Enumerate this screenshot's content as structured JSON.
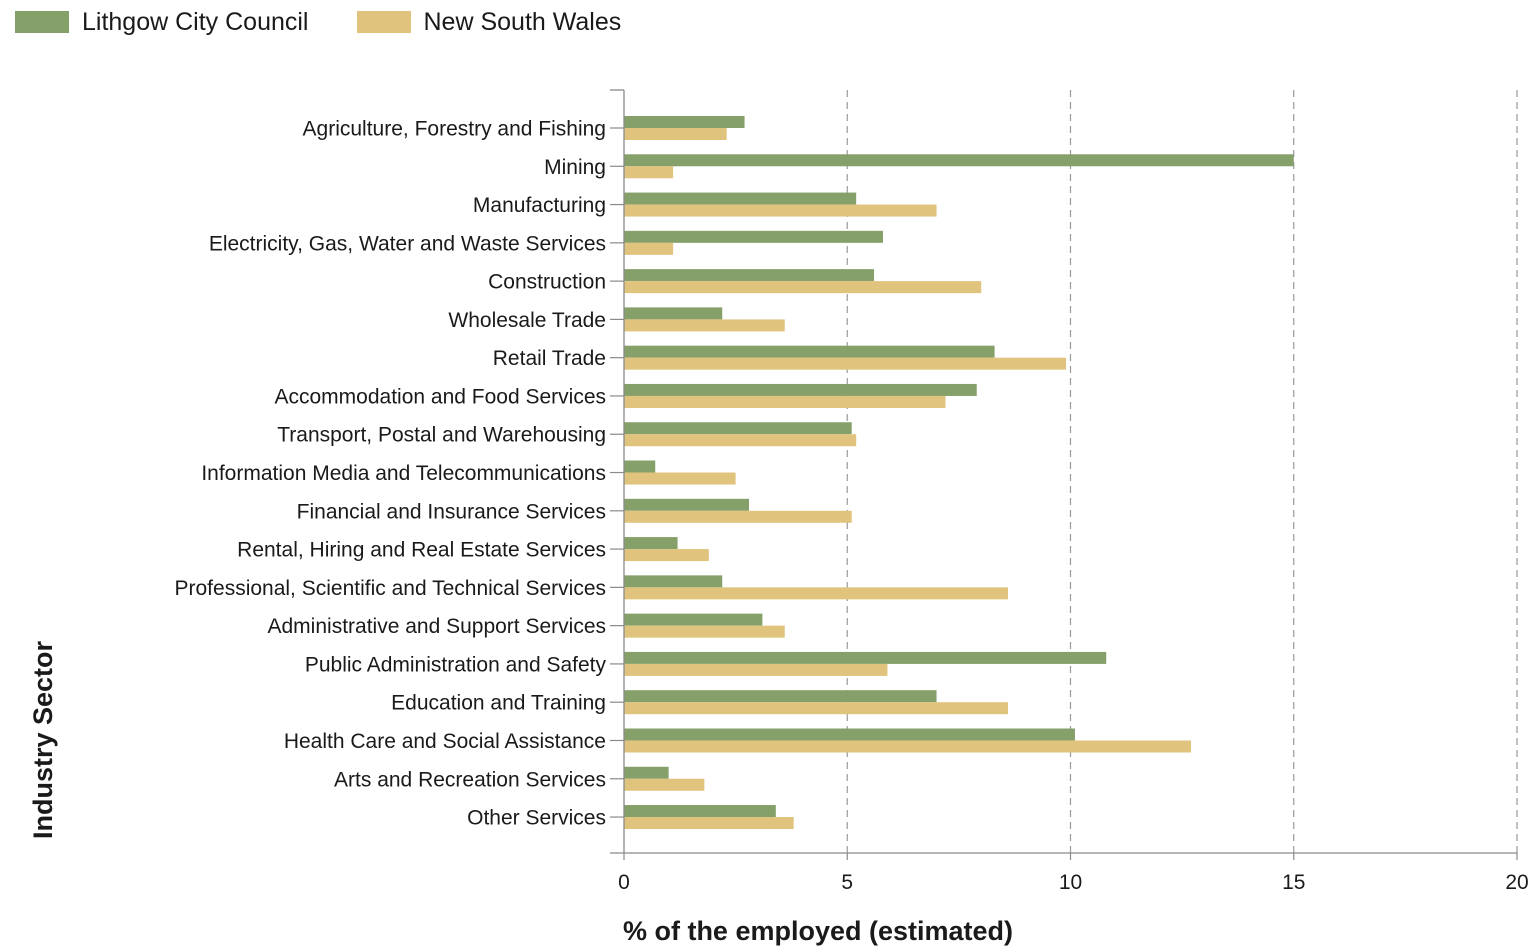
{
  "chart_data": {
    "type": "bar",
    "orientation": "horizontal",
    "title": "",
    "xlabel": "% of the employed (estimated)",
    "ylabel": "Industry Sector",
    "xlim": [
      0,
      20
    ],
    "xticks": [
      0,
      5,
      10,
      15,
      20
    ],
    "grid": "vertical dashed",
    "legend_position": "top-left",
    "categories": [
      "Agriculture, Forestry and Fishing",
      "Mining",
      "Manufacturing",
      "Electricity, Gas, Water and Waste Services",
      "Construction",
      "Wholesale Trade",
      "Retail Trade",
      "Accommodation and Food Services",
      "Transport, Postal and Warehousing",
      "Information Media and Telecommunications",
      "Financial and Insurance Services",
      "Rental, Hiring and Real Estate Services",
      "Professional, Scientific and Technical Services",
      "Administrative and Support Services",
      "Public Administration and Safety",
      "Education and Training",
      "Health Care and Social Assistance",
      "Arts and Recreation Services",
      "Other Services"
    ],
    "series": [
      {
        "name": "Lithgow City Council",
        "color": "#86a06a",
        "values": [
          2.7,
          15.0,
          5.2,
          5.8,
          5.6,
          2.2,
          8.3,
          7.9,
          5.1,
          0.7,
          2.8,
          1.2,
          2.2,
          3.1,
          10.8,
          7.0,
          10.1,
          1.0,
          3.4
        ]
      },
      {
        "name": "New South Wales",
        "color": "#e0c47e",
        "values": [
          2.3,
          1.1,
          7.0,
          1.1,
          8.0,
          3.6,
          9.9,
          7.2,
          5.2,
          2.5,
          5.1,
          1.9,
          8.6,
          3.6,
          5.9,
          8.6,
          12.7,
          1.8,
          3.8
        ]
      }
    ]
  }
}
